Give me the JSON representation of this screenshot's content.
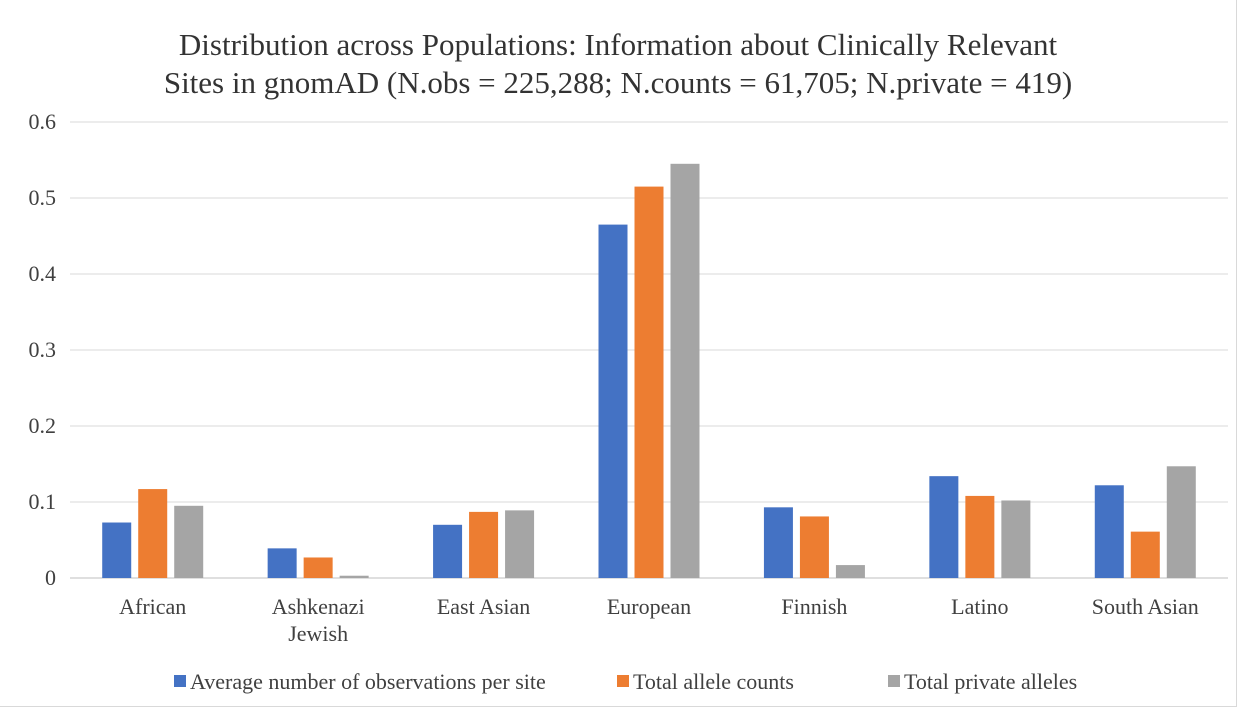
{
  "chart_data": {
    "type": "bar",
    "title": "Distribution across Populations: Information about Clinically Relevant Sites in gnomAD (N.obs = 225,288; N.counts = 61,705; N.private = 419)",
    "title_lines": [
      "Distribution across Populations: Information about Clinically Relevant",
      "Sites in gnomAD (N.obs = 225,288; N.counts = 61,705; N.private = 419)"
    ],
    "xlabel": "",
    "ylabel": "",
    "categories": [
      [
        "African"
      ],
      [
        "Ashkenazi",
        "Jewish"
      ],
      [
        "East Asian"
      ],
      [
        "European"
      ],
      [
        "Finnish"
      ],
      [
        "Latino"
      ],
      [
        "South Asian"
      ]
    ],
    "ylim": [
      0,
      0.6
    ],
    "yticks": [
      0,
      0.1,
      0.2,
      0.3,
      0.4,
      0.5,
      0.6
    ],
    "ytick_labels": [
      "0",
      "0.1",
      "0.2",
      "0.3",
      "0.4",
      "0.5",
      "0.6"
    ],
    "grid": true,
    "legend_position": "bottom",
    "series": [
      {
        "name": "Average number of observations per site",
        "color": "#4472C4",
        "values": [
          0.073,
          0.039,
          0.07,
          0.465,
          0.093,
          0.134,
          0.122
        ]
      },
      {
        "name": "Total allele counts",
        "color": "#ED7D31",
        "values": [
          0.117,
          0.027,
          0.087,
          0.515,
          0.081,
          0.108,
          0.061
        ]
      },
      {
        "name": "Total private alleles",
        "color": "#A5A5A5",
        "values": [
          0.095,
          0.003,
          0.089,
          0.545,
          0.017,
          0.102,
          0.147
        ]
      }
    ]
  }
}
